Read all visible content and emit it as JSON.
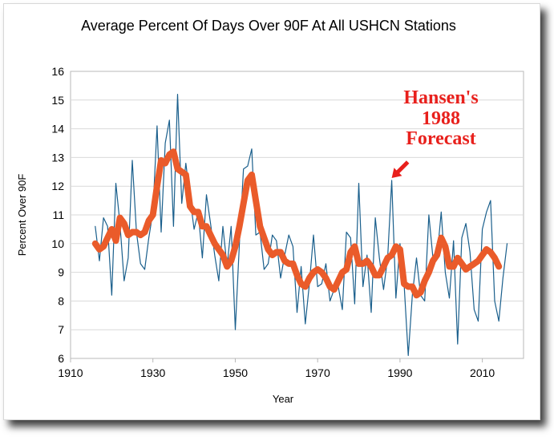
{
  "chart_data": {
    "type": "line",
    "title": "Average Percent Of Days Over 90F At All USHCN Stations",
    "xlabel": "Year",
    "ylabel": "Percent Over 90F",
    "xlim": [
      1910,
      2020
    ],
    "ylim": [
      6,
      16
    ],
    "x_ticks": [
      1910,
      1930,
      1950,
      1970,
      1990,
      2010
    ],
    "y_ticks": [
      6,
      7,
      8,
      9,
      10,
      11,
      12,
      13,
      14,
      15,
      16
    ],
    "grid": true,
    "legend": "none",
    "annotation": {
      "lines": [
        "Hansen's",
        "1988",
        "Forecast"
      ],
      "points_to": [
        1988,
        12.2
      ],
      "color": "#e8201c"
    },
    "series": [
      {
        "role": "annual",
        "color": "#1a5f8c",
        "x": [
          1916,
          1917,
          1918,
          1919,
          1920,
          1921,
          1922,
          1923,
          1924,
          1925,
          1926,
          1927,
          1928,
          1929,
          1930,
          1931,
          1932,
          1933,
          1934,
          1935,
          1936,
          1937,
          1938,
          1939,
          1940,
          1941,
          1942,
          1943,
          1944,
          1945,
          1946,
          1947,
          1948,
          1949,
          1950,
          1951,
          1952,
          1953,
          1954,
          1955,
          1956,
          1957,
          1958,
          1959,
          1960,
          1961,
          1962,
          1963,
          1964,
          1965,
          1966,
          1967,
          1968,
          1969,
          1970,
          1971,
          1972,
          1973,
          1974,
          1975,
          1976,
          1977,
          1978,
          1979,
          1980,
          1981,
          1982,
          1983,
          1984,
          1985,
          1986,
          1987,
          1988,
          1989,
          1990,
          1991,
          1992,
          1993,
          1994,
          1995,
          1996,
          1997,
          1998,
          1999,
          2000,
          2001,
          2002,
          2003,
          2004,
          2005,
          2006,
          2007,
          2008,
          2009,
          2010,
          2011,
          2012,
          2013,
          2014,
          2015,
          2016
        ],
        "y": [
          10.6,
          9.4,
          10.9,
          10.6,
          8.2,
          12.1,
          10.7,
          8.7,
          9.5,
          12.9,
          10.4,
          9.3,
          9.1,
          10.2,
          11.1,
          14.1,
          10.4,
          13.5,
          14.3,
          10.6,
          15.2,
          11.4,
          12.8,
          11.6,
          10.5,
          11.1,
          9.5,
          11.7,
          10.7,
          9.6,
          8.7,
          10.6,
          9.2,
          10.6,
          7.0,
          10.0,
          12.6,
          12.7,
          13.3,
          10.3,
          10.4,
          9.1,
          9.3,
          10.3,
          10.1,
          8.8,
          9.6,
          10.3,
          9.9,
          7.6,
          9.2,
          7.2,
          8.6,
          10.3,
          8.5,
          8.6,
          9.3,
          8.0,
          8.4,
          8.5,
          7.7,
          10.4,
          10.2,
          7.9,
          12.1,
          8.5,
          9.6,
          7.6,
          10.9,
          9.5,
          8.4,
          9.5,
          12.2,
          8.1,
          10.0,
          8.6,
          6.1,
          8.2,
          9.5,
          8.2,
          8.0,
          11.0,
          9.5,
          9.5,
          11.1,
          9.0,
          8.1,
          10.1,
          6.5,
          10.2,
          10.7,
          9.7,
          7.7,
          7.3,
          10.5,
          11.1,
          11.5,
          8.0,
          7.3,
          8.8,
          10.0
        ]
      },
      {
        "role": "smoothed",
        "color": "#ea5b2a",
        "x": [
          1916,
          1917,
          1918,
          1919,
          1920,
          1921,
          1922,
          1923,
          1924,
          1925,
          1926,
          1927,
          1928,
          1929,
          1930,
          1931,
          1932,
          1933,
          1934,
          1935,
          1936,
          1937,
          1938,
          1939,
          1940,
          1941,
          1942,
          1943,
          1944,
          1945,
          1946,
          1947,
          1948,
          1949,
          1950,
          1951,
          1952,
          1953,
          1954,
          1955,
          1956,
          1957,
          1958,
          1959,
          1960,
          1961,
          1962,
          1963,
          1964,
          1965,
          1966,
          1967,
          1968,
          1969,
          1970,
          1971,
          1972,
          1973,
          1974,
          1975,
          1976,
          1977,
          1978,
          1979,
          1980,
          1981,
          1982,
          1983,
          1984,
          1985,
          1986,
          1987,
          1988,
          1989,
          1990,
          1991,
          1992,
          1993,
          1994,
          1995,
          1996,
          1997,
          1998,
          1999,
          2000,
          2001,
          2002,
          2003,
          2004,
          2005,
          2006,
          2007,
          2008,
          2009,
          2010,
          2011,
          2012,
          2013,
          2014
        ],
        "y": [
          10.0,
          9.8,
          9.9,
          10.2,
          10.5,
          10.1,
          10.9,
          10.7,
          10.3,
          10.4,
          10.4,
          10.3,
          10.4,
          10.8,
          11.0,
          12.0,
          12.9,
          12.8,
          13.1,
          13.2,
          12.6,
          12.5,
          12.4,
          11.3,
          11.1,
          11.1,
          10.6,
          10.6,
          10.3,
          10.0,
          9.8,
          9.6,
          9.2,
          9.4,
          9.9,
          10.6,
          11.4,
          12.2,
          12.4,
          11.5,
          10.6,
          10.2,
          9.8,
          9.6,
          9.7,
          9.7,
          9.4,
          9.3,
          9.3,
          8.9,
          8.6,
          8.5,
          8.8,
          9.0,
          9.1,
          9.0,
          8.8,
          8.5,
          8.4,
          8.7,
          9.0,
          9.1,
          9.7,
          9.9,
          9.3,
          9.3,
          9.4,
          9.2,
          8.9,
          8.9,
          9.2,
          9.5,
          9.6,
          9.9,
          9.8,
          8.6,
          8.5,
          8.5,
          8.2,
          8.3,
          8.7,
          9.0,
          9.4,
          9.6,
          10.2,
          9.9,
          9.2,
          9.2,
          9.5,
          9.3,
          9.1,
          9.2,
          9.3,
          9.4,
          9.6,
          9.8,
          9.7,
          9.5,
          9.2
        ]
      }
    ]
  }
}
